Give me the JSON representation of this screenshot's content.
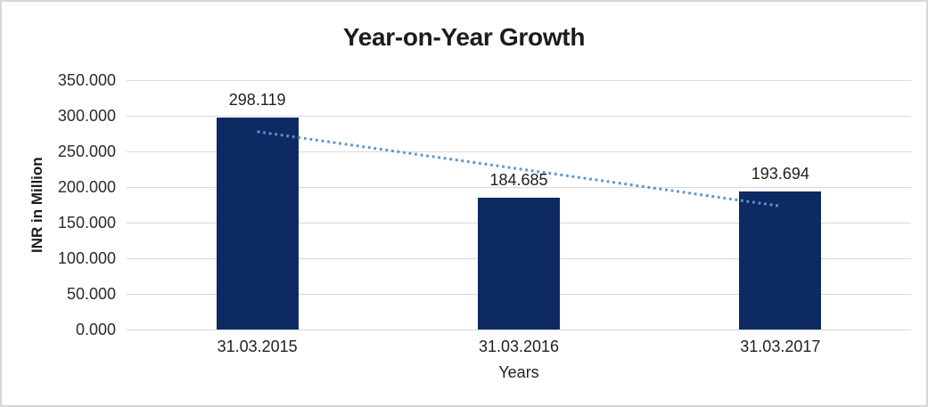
{
  "page": {
    "background": "#ffffff",
    "border_color": "#d7d7d7"
  },
  "chart_data": {
    "type": "bar",
    "title": "Year-on-Year Growth",
    "xlabel": "Years",
    "ylabel": "INR in Million",
    "categories": [
      "31.03.2015",
      "31.03.2016",
      "31.03.2017"
    ],
    "values": [
      298.119,
      184.685,
      193.694
    ],
    "data_labels": [
      "298.119",
      "184.685",
      "193.694"
    ],
    "yticks": [
      {
        "value": 0,
        "label": "0.000"
      },
      {
        "value": 50,
        "label": "50.000"
      },
      {
        "value": 100,
        "label": "100.000"
      },
      {
        "value": 150,
        "label": "150.000"
      },
      {
        "value": 200,
        "label": "200.000"
      },
      {
        "value": 250,
        "label": "250.000"
      },
      {
        "value": 300,
        "label": "300.000"
      },
      {
        "value": 350,
        "label": "350.000"
      }
    ],
    "ylim": [
      0,
      350
    ],
    "grid": "horizontal",
    "gridline_color": "#d9d9d9",
    "legend": "none",
    "bar_color": "#0d2a63",
    "trendline": {
      "type": "linear",
      "style": "dotted",
      "color": "#5b94d1"
    }
  }
}
